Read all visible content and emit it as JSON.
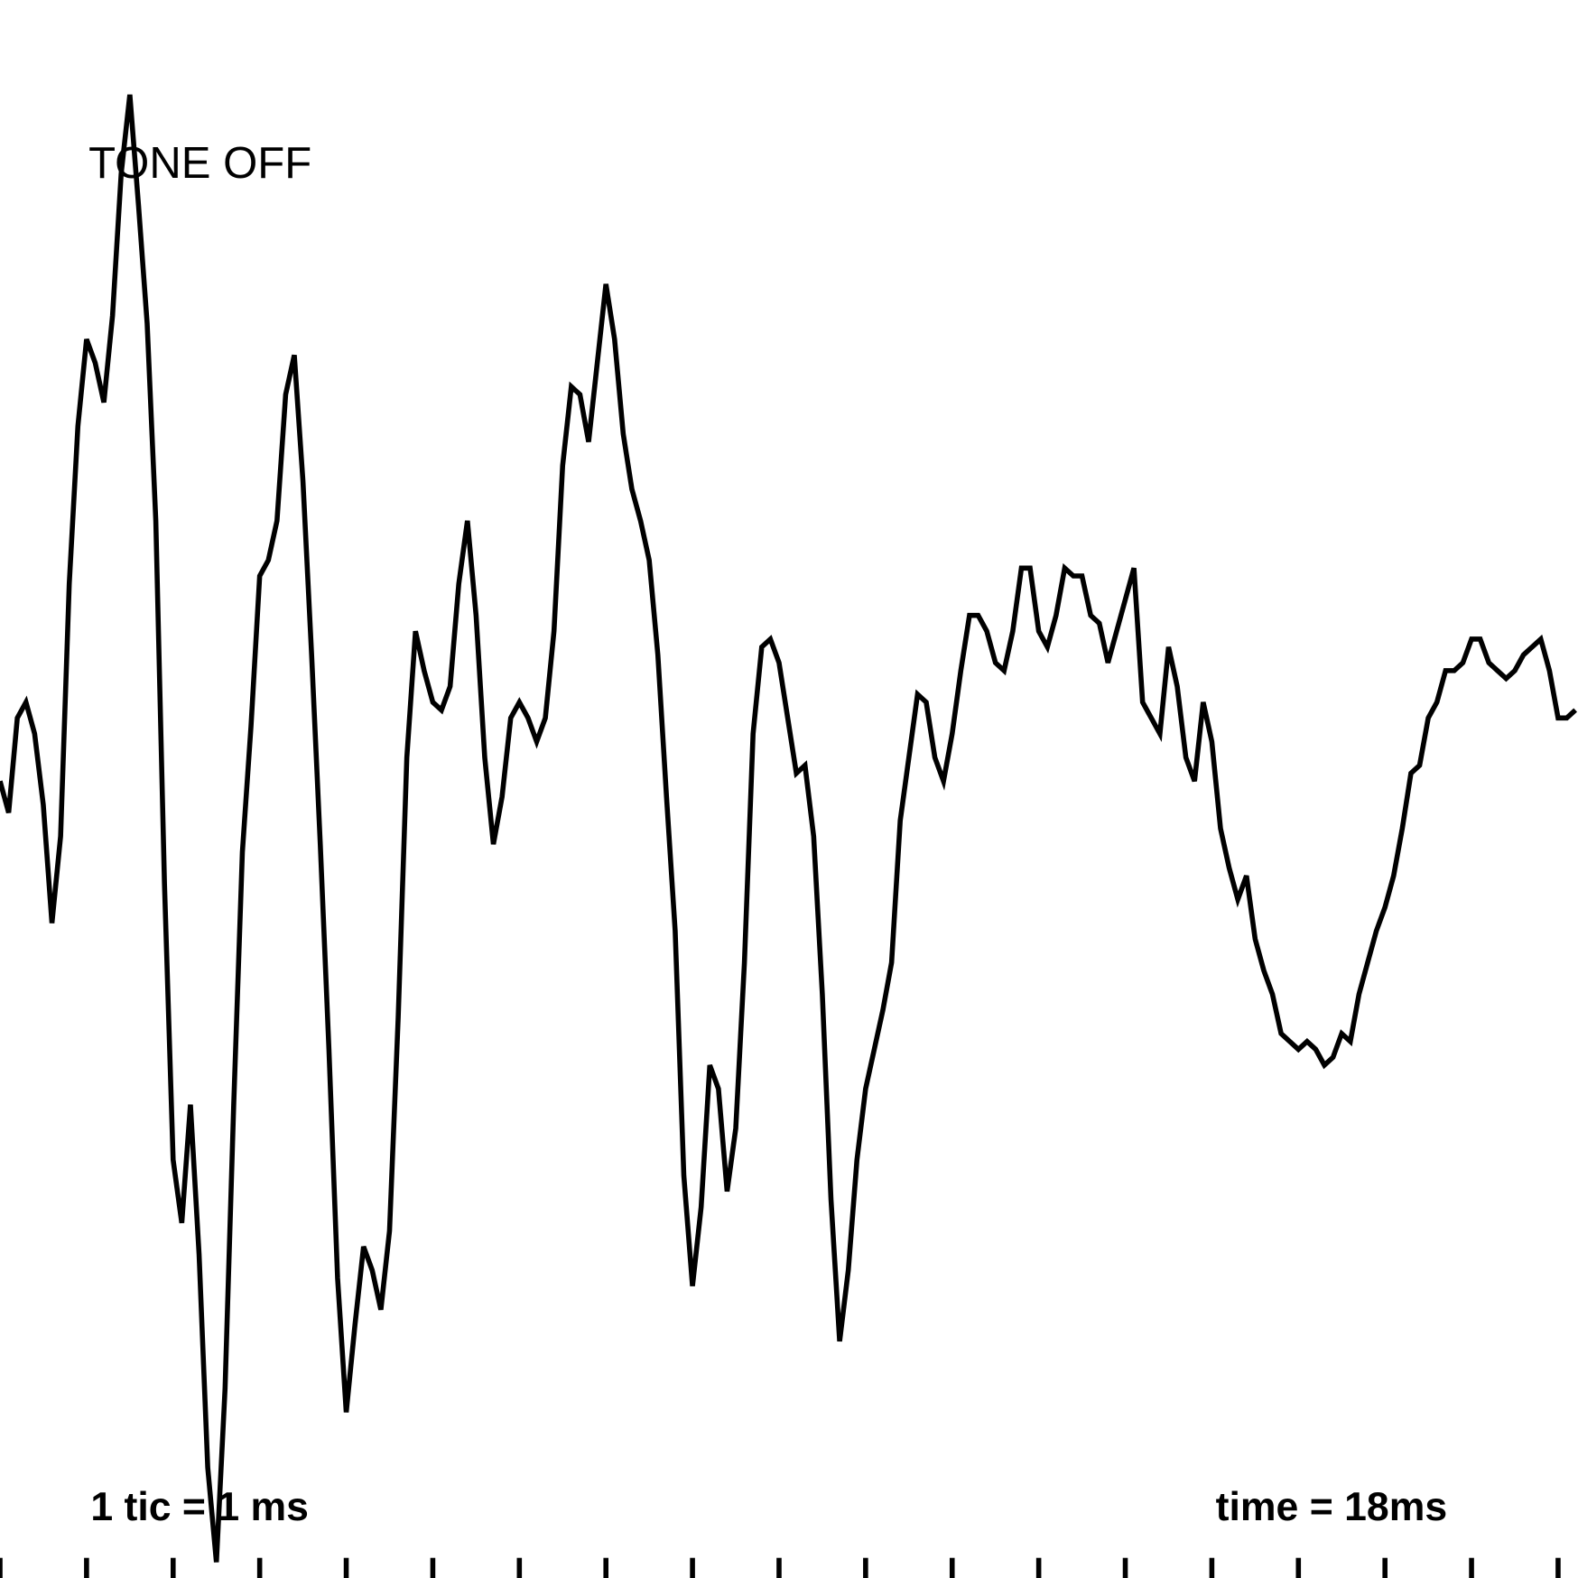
{
  "chart_data": {
    "type": "line",
    "annotations": [
      "TONE OFF",
      "1 tic = 1 ms",
      "time = 18ms"
    ],
    "x": [
      0,
      0.1,
      0.2,
      0.3,
      0.4,
      0.5,
      0.6,
      0.7,
      0.8,
      0.9,
      1,
      1.1,
      1.2,
      1.3,
      1.4,
      1.5,
      1.6,
      1.7,
      1.8,
      1.9,
      2,
      2.1,
      2.2,
      2.3,
      2.4,
      2.5,
      2.6,
      2.7,
      2.8,
      2.9,
      3,
      3.1,
      3.2,
      3.3,
      3.4,
      3.5,
      3.6,
      3.7,
      3.8,
      3.9,
      4,
      4.1,
      4.2,
      4.3,
      4.4,
      4.5,
      4.6,
      4.7,
      4.8,
      4.9,
      5,
      5.1,
      5.2,
      5.3,
      5.4,
      5.5,
      5.6,
      5.7,
      5.8,
      5.9,
      6,
      6.1,
      6.2,
      6.3,
      6.4,
      6.5,
      6.6,
      6.7,
      6.8,
      6.9,
      7,
      7.1,
      7.2,
      7.3,
      7.4,
      7.5,
      7.6,
      7.7,
      7.8,
      7.9,
      8,
      8.1,
      8.2,
      8.3,
      8.4,
      8.5,
      8.6,
      8.7,
      8.8,
      8.9,
      9,
      9.1,
      9.2,
      9.3,
      9.4,
      9.5,
      9.6,
      9.7,
      9.8,
      9.9,
      10,
      10.1,
      10.2,
      10.3,
      10.4,
      10.5,
      10.6,
      10.7,
      10.8,
      10.9,
      11,
      11.1,
      11.2,
      11.3,
      11.4,
      11.5,
      11.6,
      11.7,
      11.8,
      11.9,
      12,
      12.1,
      12.2,
      12.3,
      12.4,
      12.5,
      12.6,
      12.7,
      12.8,
      12.9,
      13,
      13.1,
      13.2,
      13.3,
      13.4,
      13.5,
      13.6,
      13.7,
      13.8,
      13.9,
      14,
      14.1,
      14.2,
      14.3,
      14.4,
      14.5,
      14.6,
      14.7,
      14.8,
      14.9,
      15,
      15.1,
      15.2,
      15.3,
      15.4,
      15.5,
      15.6,
      15.7,
      15.8,
      15.9,
      16,
      16.1,
      16.2,
      16.3,
      16.4,
      16.5,
      16.6,
      16.7,
      16.8,
      16.9,
      17,
      17.1,
      17.2,
      17.3,
      17.4,
      17.5,
      17.6,
      17.7,
      17.8,
      17.9,
      18,
      18.1,
      18.2
    ],
    "series": [
      {
        "color": "#000000",
        "values": [
          1,
          -3,
          9,
          11,
          7,
          -2,
          -17,
          -6,
          26,
          46,
          57,
          54,
          49,
          60,
          78,
          88,
          74,
          59,
          34,
          -12,
          -47,
          -55,
          -40,
          -59,
          -86,
          -98,
          -76,
          -40,
          -8,
          8,
          27,
          29,
          34,
          50,
          55,
          39,
          17,
          -7,
          -33,
          -62,
          -79,
          -68,
          -58,
          -61,
          -66,
          -56,
          -29,
          4,
          20,
          15,
          11,
          10,
          13,
          26,
          34,
          22,
          4,
          -7,
          -1,
          9,
          11,
          9,
          6,
          9,
          20,
          41,
          51,
          50,
          44,
          54,
          64,
          57,
          45,
          38,
          34,
          29,
          17,
          -1,
          -18,
          -49,
          -63,
          -53,
          -35,
          -38,
          -51,
          -43,
          -22,
          7,
          18,
          19,
          16,
          9,
          2,
          3,
          -6,
          -26,
          -52,
          -70,
          -61,
          -47,
          -38,
          -33,
          -28,
          -22,
          -4,
          4,
          12,
          11,
          4,
          1,
          7,
          15,
          22,
          22,
          20,
          16,
          15,
          20,
          28,
          28,
          20,
          18,
          22,
          28,
          27,
          27,
          22,
          21,
          16,
          20,
          24,
          28,
          11,
          9,
          7,
          18,
          13,
          4,
          1,
          11,
          6,
          -5,
          -10,
          -14,
          -11,
          -19,
          -23,
          -26,
          -31,
          -32,
          -33,
          -32,
          -33,
          -35,
          -34,
          -31,
          -32,
          -26,
          -22,
          -18,
          -15,
          -11,
          -5,
          2,
          3,
          9,
          11,
          15,
          15,
          16,
          19,
          19,
          16,
          15,
          14,
          15,
          17,
          18,
          19,
          15,
          9,
          9,
          10
        ]
      }
    ],
    "xlim": [
      0,
      18.23
    ],
    "ylim": [
      -100,
      100
    ],
    "xticks": [
      0,
      1,
      2,
      3,
      4,
      5,
      6,
      7,
      8,
      9,
      10,
      11,
      12,
      13,
      14,
      15,
      16,
      17,
      18
    ]
  }
}
